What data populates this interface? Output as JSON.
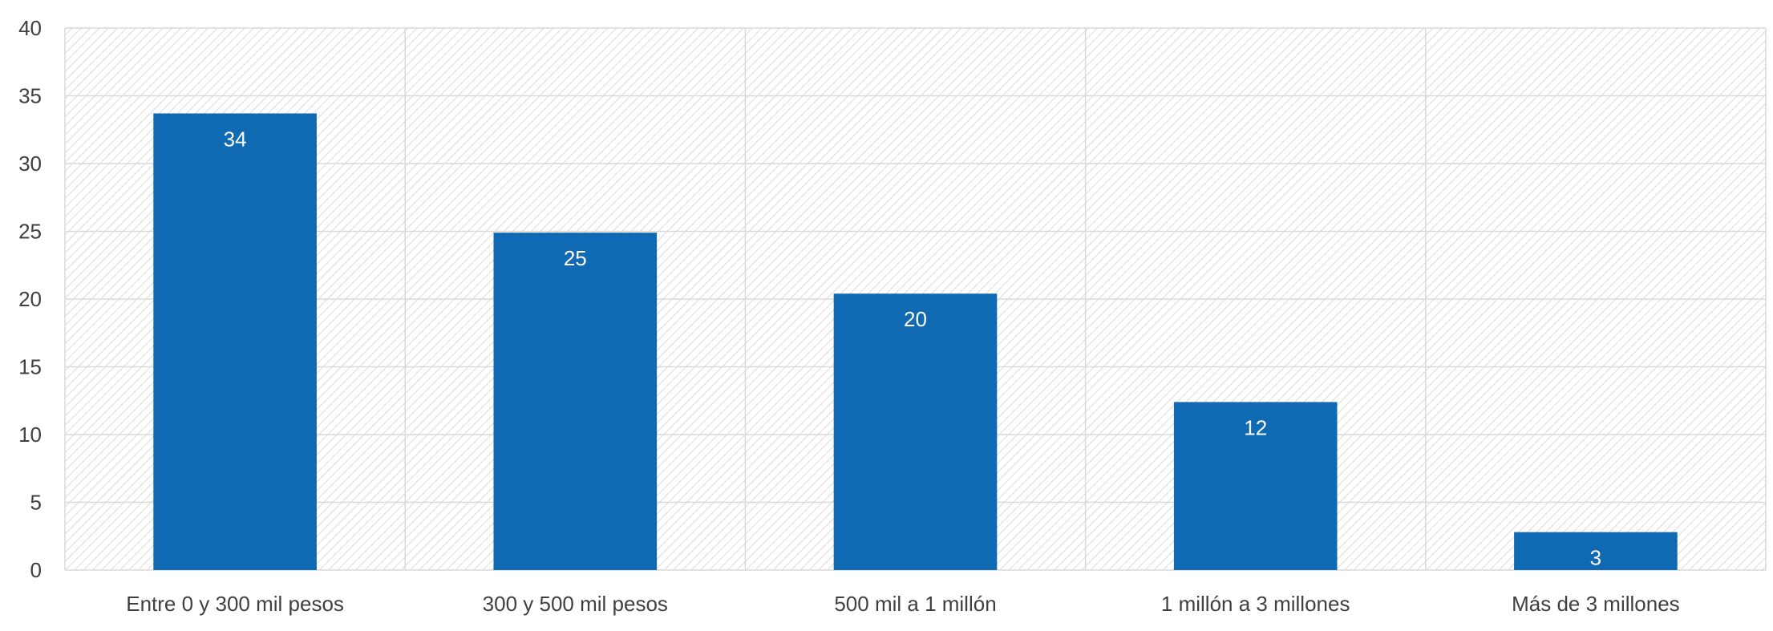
{
  "chart_data": {
    "type": "bar",
    "categories": [
      "Entre 0 y 300 mil pesos",
      "300 y 500 mil pesos",
      "500 mil a 1 millón",
      "1 millón a 3 millones",
      "Más de 3 millones"
    ],
    "values": [
      33.7,
      24.9,
      20.4,
      12.4,
      2.8
    ],
    "data_labels": [
      "34",
      "25",
      "20",
      "12",
      "3"
    ],
    "y_ticks": [
      "0",
      "5",
      "10",
      "15",
      "20",
      "25",
      "30",
      "35",
      "40"
    ],
    "ylim": [
      0,
      40
    ],
    "title": "",
    "xlabel": "",
    "ylabel": "",
    "grid": true,
    "legend": "none",
    "colors": {
      "bar": "#106ab3",
      "grid": "#d9d9d9",
      "hatch": "#d0d0d0",
      "axis_text": "#404040"
    }
  }
}
